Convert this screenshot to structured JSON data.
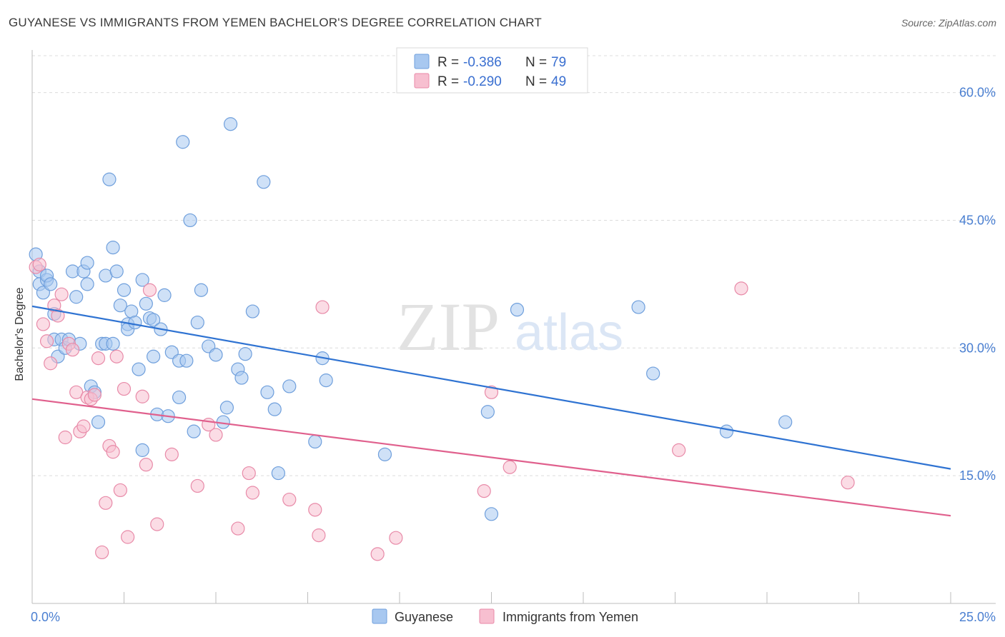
{
  "title": "GUYANESE VS IMMIGRANTS FROM YEMEN BACHELOR'S DEGREE CORRELATION CHART",
  "source": "Source: ZipAtlas.com",
  "watermark": {
    "zip": "ZIP",
    "atlas": "atlas"
  },
  "chart_data": {
    "type": "scatter",
    "ylabel": "Bachelor's Degree",
    "xlim": [
      0,
      25
    ],
    "ylim": [
      0,
      65
    ],
    "x_tick_labels": [
      "0.0%",
      "25.0%"
    ],
    "y_ticks": [
      15,
      30,
      45,
      60
    ],
    "y_tick_labels": [
      "15.0%",
      "30.0%",
      "45.0%",
      "60.0%"
    ],
    "grid": "horizontal dashed",
    "legend": {
      "placement": "top-center",
      "entries": [
        {
          "r_label": "R =",
          "r_value": "-0.386",
          "n_label": "N =",
          "n_value": "79"
        },
        {
          "r_label": "R =",
          "r_value": "-0.290",
          "n_label": "N =",
          "n_value": "49"
        }
      ]
    },
    "series": [
      {
        "name": "Guyanese",
        "color": "#a8c8f0",
        "stroke": "#6f9fdc",
        "trend": {
          "x": [
            0,
            25
          ],
          "y": [
            34.9,
            15.8
          ],
          "color": "#2f73d2"
        },
        "points": [
          [
            0.1,
            41.0
          ],
          [
            0.2,
            39.0
          ],
          [
            0.2,
            37.5
          ],
          [
            0.3,
            36.5
          ],
          [
            0.4,
            38.0
          ],
          [
            0.4,
            38.5
          ],
          [
            0.5,
            37.5
          ],
          [
            0.6,
            34.0
          ],
          [
            0.6,
            31.0
          ],
          [
            0.7,
            29.0
          ],
          [
            0.8,
            31.0
          ],
          [
            0.9,
            30.0
          ],
          [
            1.0,
            31.0
          ],
          [
            1.1,
            39.0
          ],
          [
            1.2,
            36.0
          ],
          [
            1.3,
            30.5
          ],
          [
            1.4,
            39.0
          ],
          [
            1.5,
            40.0
          ],
          [
            1.5,
            37.5
          ],
          [
            1.6,
            25.5
          ],
          [
            1.7,
            24.8
          ],
          [
            1.8,
            21.3
          ],
          [
            1.9,
            30.5
          ],
          [
            2.0,
            38.5
          ],
          [
            2.0,
            30.5
          ],
          [
            2.1,
            49.8
          ],
          [
            2.2,
            30.5
          ],
          [
            2.2,
            41.8
          ],
          [
            2.3,
            39.0
          ],
          [
            2.4,
            35.0
          ],
          [
            2.5,
            36.8
          ],
          [
            2.6,
            32.8
          ],
          [
            2.6,
            32.2
          ],
          [
            2.7,
            34.3
          ],
          [
            2.8,
            33.0
          ],
          [
            2.9,
            27.5
          ],
          [
            3.0,
            18.0
          ],
          [
            3.0,
            38.0
          ],
          [
            3.1,
            35.2
          ],
          [
            3.2,
            33.5
          ],
          [
            3.3,
            29.0
          ],
          [
            3.3,
            33.3
          ],
          [
            3.4,
            22.2
          ],
          [
            3.5,
            32.2
          ],
          [
            3.6,
            36.2
          ],
          [
            3.7,
            22.0
          ],
          [
            3.8,
            29.5
          ],
          [
            4.0,
            24.2
          ],
          [
            4.0,
            28.5
          ],
          [
            4.1,
            54.2
          ],
          [
            4.2,
            28.5
          ],
          [
            4.3,
            45.0
          ],
          [
            4.4,
            20.2
          ],
          [
            4.5,
            33.0
          ],
          [
            4.6,
            36.8
          ],
          [
            4.8,
            30.2
          ],
          [
            5.0,
            29.2
          ],
          [
            5.2,
            21.3
          ],
          [
            5.3,
            23.0
          ],
          [
            5.4,
            56.3
          ],
          [
            5.6,
            27.5
          ],
          [
            5.7,
            26.5
          ],
          [
            5.8,
            29.3
          ],
          [
            6.0,
            34.3
          ],
          [
            6.3,
            49.5
          ],
          [
            6.4,
            24.8
          ],
          [
            6.6,
            22.8
          ],
          [
            6.7,
            15.3
          ],
          [
            7.0,
            25.5
          ],
          [
            7.7,
            19.0
          ],
          [
            7.9,
            28.8
          ],
          [
            8.0,
            26.2
          ],
          [
            9.6,
            17.5
          ],
          [
            12.4,
            22.5
          ],
          [
            12.5,
            10.5
          ],
          [
            13.2,
            34.5
          ],
          [
            16.5,
            34.8
          ],
          [
            16.9,
            27.0
          ],
          [
            18.9,
            20.2
          ],
          [
            20.5,
            21.3
          ]
        ]
      },
      {
        "name": "Immigrants from Yemen",
        "color": "#f7bfd0",
        "stroke": "#e88aa8",
        "trend": {
          "x": [
            0,
            25
          ],
          "y": [
            24.0,
            10.3
          ],
          "color": "#e0608d"
        },
        "points": [
          [
            0.1,
            39.5
          ],
          [
            0.3,
            32.8
          ],
          [
            0.4,
            30.8
          ],
          [
            0.5,
            28.2
          ],
          [
            0.6,
            35.0
          ],
          [
            0.7,
            33.8
          ],
          [
            0.8,
            36.3
          ],
          [
            0.9,
            19.5
          ],
          [
            1.0,
            30.5
          ],
          [
            1.1,
            29.8
          ],
          [
            1.2,
            24.8
          ],
          [
            1.3,
            20.2
          ],
          [
            1.4,
            20.8
          ],
          [
            1.5,
            24.2
          ],
          [
            1.6,
            24.0
          ],
          [
            1.7,
            24.5
          ],
          [
            1.8,
            28.8
          ],
          [
            1.9,
            6.0
          ],
          [
            2.0,
            11.8
          ],
          [
            2.1,
            18.5
          ],
          [
            2.2,
            17.8
          ],
          [
            2.3,
            29.0
          ],
          [
            2.4,
            13.3
          ],
          [
            2.5,
            25.2
          ],
          [
            2.6,
            7.8
          ],
          [
            3.0,
            24.3
          ],
          [
            3.1,
            16.3
          ],
          [
            3.2,
            36.8
          ],
          [
            3.4,
            9.3
          ],
          [
            3.8,
            17.5
          ],
          [
            4.5,
            13.8
          ],
          [
            4.8,
            21.0
          ],
          [
            5.0,
            19.8
          ],
          [
            5.6,
            8.8
          ],
          [
            5.9,
            15.3
          ],
          [
            6.0,
            13.0
          ],
          [
            7.0,
            12.2
          ],
          [
            7.7,
            11.0
          ],
          [
            7.8,
            8.0
          ],
          [
            7.9,
            34.8
          ],
          [
            9.4,
            5.8
          ],
          [
            9.9,
            7.7
          ],
          [
            12.3,
            13.2
          ],
          [
            12.5,
            24.8
          ],
          [
            13.0,
            16.0
          ],
          [
            17.6,
            18.0
          ],
          [
            19.3,
            37.0
          ],
          [
            22.2,
            14.2
          ],
          [
            0.2,
            39.8
          ]
        ]
      }
    ]
  }
}
